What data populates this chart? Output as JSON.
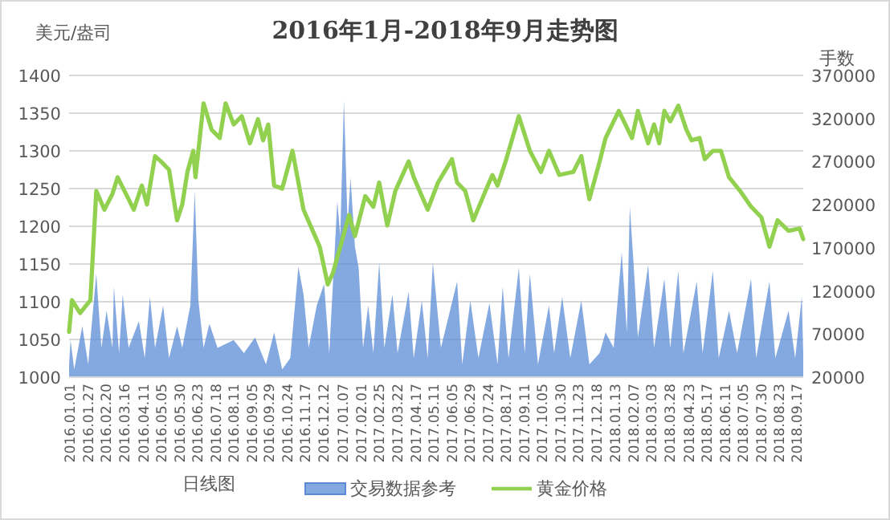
{
  "chart_data": {
    "type": "line",
    "title": "2016年1月-2018年9月走势图",
    "ylabel": "美元/盎司",
    "y2label": "手数",
    "xlabel": "日线图",
    "legend": "bottom",
    "grid": "y",
    "xlim": [
      "2016-01-01",
      "2018-09-26"
    ],
    "xticks": [
      {
        "value": "2016-01-01",
        "label": "2016.01.01"
      },
      {
        "value": "2016-01-27",
        "label": "2016.01.27"
      },
      {
        "value": "2016-02-20",
        "label": "2016.02.20"
      },
      {
        "value": "2016-03-16",
        "label": "2016.03.16"
      },
      {
        "value": "2016-04-11",
        "label": "2016.04.11"
      },
      {
        "value": "2016-05-05",
        "label": "2016.05.05"
      },
      {
        "value": "2016-05-30",
        "label": "2016.05.30"
      },
      {
        "value": "2016-06-23",
        "label": "2016.06.23"
      },
      {
        "value": "2016-07-18",
        "label": "2016.07.18"
      },
      {
        "value": "2016-08-11",
        "label": "2016.08.11"
      },
      {
        "value": "2016-09-05",
        "label": "2016.09.05"
      },
      {
        "value": "2016-09-29",
        "label": "2016.09.29"
      },
      {
        "value": "2016-10-24",
        "label": "2016.10.24"
      },
      {
        "value": "2016-11-17",
        "label": "2016.11.17"
      },
      {
        "value": "2016-12-12",
        "label": "2016.12.12"
      },
      {
        "value": "2017-01-07",
        "label": "2017.01.07"
      },
      {
        "value": "2017-02-01",
        "label": "2017.02.01"
      },
      {
        "value": "2017-02-25",
        "label": "2017.02.25"
      },
      {
        "value": "2017-03-22",
        "label": "2017.03.22"
      },
      {
        "value": "2017-04-17",
        "label": "2017.04.17"
      },
      {
        "value": "2017-05-11",
        "label": "2017.05.11"
      },
      {
        "value": "2017-06-05",
        "label": "2017.06.05"
      },
      {
        "value": "2017-06-29",
        "label": "2017.06.29"
      },
      {
        "value": "2017-07-24",
        "label": "2017.07.24"
      },
      {
        "value": "2017-08-17",
        "label": "2017.08.17"
      },
      {
        "value": "2017-09-11",
        "label": "2017.09.11"
      },
      {
        "value": "2017-10-05",
        "label": "2017.10.05"
      },
      {
        "value": "2017-10-30",
        "label": "2017.10.30"
      },
      {
        "value": "2017-11-23",
        "label": "2017.11.23"
      },
      {
        "value": "2017-12-18",
        "label": "2017.12.18"
      },
      {
        "value": "2018-01-13",
        "label": "2018.01.13"
      },
      {
        "value": "2018-02-07",
        "label": "2018.02.07"
      },
      {
        "value": "2018-03-03",
        "label": "2018.03.03"
      },
      {
        "value": "2018-03-28",
        "label": "2018.03.28"
      },
      {
        "value": "2018-04-23",
        "label": "2018.04.23"
      },
      {
        "value": "2018-05-17",
        "label": "2018.05.17"
      },
      {
        "value": "2018-06-11",
        "label": "2018.06.11"
      },
      {
        "value": "2018-07-05",
        "label": "2018.07.05"
      },
      {
        "value": "2018-07-30",
        "label": "2018.07.30"
      },
      {
        "value": "2018-08-23",
        "label": "2018.08.23"
      },
      {
        "value": "2018-09-17",
        "label": "2018.09.17"
      }
    ],
    "ylim": [
      1000,
      1400
    ],
    "yticks": [
      1000,
      1050,
      1100,
      1150,
      1200,
      1250,
      1300,
      1350,
      1400
    ],
    "y2lim": [
      20000,
      370000
    ],
    "y2ticks": [
      20000,
      70000,
      120000,
      170000,
      220000,
      270000,
      320000,
      370000
    ],
    "series": [
      {
        "name": "交易数据参考",
        "type": "area",
        "axis": "y2",
        "color": "#5b8bd6",
        "x": [
          "2016-01-01",
          "2016-01-03",
          "2016-01-08",
          "2016-01-19",
          "2016-01-27",
          "2016-02-07",
          "2016-02-14",
          "2016-02-21",
          "2016-02-29",
          "2016-03-02",
          "2016-03-09",
          "2016-03-14",
          "2016-03-22",
          "2016-04-05",
          "2016-04-13",
          "2016-04-20",
          "2016-04-27",
          "2016-05-08",
          "2016-05-16",
          "2016-05-27",
          "2016-06-03",
          "2016-06-14",
          "2016-06-20",
          "2016-06-25",
          "2016-07-02",
          "2016-07-10",
          "2016-07-21",
          "2016-08-12",
          "2016-08-26",
          "2016-09-10",
          "2016-09-25",
          "2016-10-06",
          "2016-10-17",
          "2016-10-28",
          "2016-11-08",
          "2016-11-15",
          "2016-11-22",
          "2016-12-03",
          "2016-12-13",
          "2016-12-20",
          "2016-12-31",
          "2017-01-04",
          "2017-01-09",
          "2017-01-14",
          "2017-01-18",
          "2017-01-24",
          "2017-01-29",
          "2017-02-04",
          "2017-02-11",
          "2017-02-18",
          "2017-02-26",
          "2017-03-05",
          "2017-03-16",
          "2017-03-23",
          "2017-04-07",
          "2017-04-14",
          "2017-04-25",
          "2017-05-03",
          "2017-05-10",
          "2017-05-21",
          "2017-06-12",
          "2017-06-19",
          "2017-06-30",
          "2017-07-11",
          "2017-07-26",
          "2017-08-06",
          "2017-08-13",
          "2017-08-21",
          "2017-09-04",
          "2017-09-12",
          "2017-09-19",
          "2017-09-30",
          "2017-10-15",
          "2017-10-22",
          "2017-11-02",
          "2017-11-13",
          "2017-11-28",
          "2017-12-09",
          "2017-12-23",
          "2017-12-31",
          "2018-01-11",
          "2018-01-22",
          "2018-01-29",
          "2018-02-02",
          "2018-02-07",
          "2018-02-13",
          "2018-02-27",
          "2018-03-07",
          "2018-03-21",
          "2018-03-29",
          "2018-04-09",
          "2018-04-16",
          "2018-05-04",
          "2018-05-12",
          "2018-05-26",
          "2018-06-03",
          "2018-06-17",
          "2018-06-28",
          "2018-07-17",
          "2018-07-24",
          "2018-08-11",
          "2018-08-19",
          "2018-09-06",
          "2018-09-15",
          "2018-09-24",
          "2018-09-26"
        ],
        "values": [
          35000,
          63000,
          29000,
          79000,
          35000,
          140000,
          54000,
          97000,
          54000,
          125000,
          48000,
          116000,
          54000,
          85000,
          42000,
          113000,
          54000,
          103000,
          42000,
          79000,
          54000,
          103000,
          236000,
          109000,
          54000,
          82000,
          54000,
          63000,
          48000,
          66000,
          35000,
          72000,
          29000,
          42000,
          148000,
          116000,
          54000,
          103000,
          128000,
          48000,
          224000,
          184000,
          341000,
          196000,
          251000,
          171000,
          147000,
          54000,
          103000,
          48000,
          153000,
          54000,
          116000,
          48000,
          119000,
          42000,
          109000,
          42000,
          153000,
          54000,
          131000,
          35000,
          109000,
          42000,
          106000,
          35000,
          125000,
          42000,
          147000,
          48000,
          140000,
          35000,
          103000,
          48000,
          113000,
          42000,
          109000,
          35000,
          48000,
          72000,
          54000,
          165000,
          72000,
          218000,
          153000,
          66000,
          150000,
          54000,
          134000,
          54000,
          143000,
          48000,
          131000,
          48000,
          143000,
          42000,
          97000,
          48000,
          134000,
          42000,
          131000,
          42000,
          97000,
          42000,
          113000,
          48000
        ]
      },
      {
        "name": "黄金价格",
        "type": "line",
        "axis": "y",
        "color": "#92d050",
        "x": [
          "2016-01-01",
          "2016-01-05",
          "2016-01-16",
          "2016-01-30",
          "2016-02-07",
          "2016-02-18",
          "2016-02-29",
          "2016-03-07",
          "2016-03-22",
          "2016-03-29",
          "2016-04-09",
          "2016-04-16",
          "2016-04-27",
          "2016-05-05",
          "2016-05-16",
          "2016-05-27",
          "2016-06-03",
          "2016-06-10",
          "2016-06-18",
          "2016-06-21",
          "2016-07-02",
          "2016-07-13",
          "2016-07-24",
          "2016-08-01",
          "2016-08-12",
          "2016-08-23",
          "2016-09-03",
          "2016-09-14",
          "2016-09-21",
          "2016-09-28",
          "2016-10-06",
          "2016-10-17",
          "2016-10-31",
          "2016-11-15",
          "2016-12-07",
          "2016-12-18",
          "2016-12-25",
          "2017-01-05",
          "2017-01-16",
          "2017-01-24",
          "2017-02-07",
          "2017-02-18",
          "2017-02-26",
          "2017-03-09",
          "2017-03-20",
          "2017-04-07",
          "2017-04-14",
          "2017-05-03",
          "2017-05-17",
          "2017-06-05",
          "2017-06-12",
          "2017-06-23",
          "2017-07-04",
          "2017-07-22",
          "2017-07-30",
          "2017-08-06",
          "2017-08-17",
          "2017-09-04",
          "2017-09-19",
          "2017-10-04",
          "2017-10-15",
          "2017-10-29",
          "2017-11-17",
          "2017-11-28",
          "2017-12-09",
          "2017-12-23",
          "2017-12-31",
          "2018-01-18",
          "2018-02-05",
          "2018-02-13",
          "2018-02-27",
          "2018-03-07",
          "2018-03-14",
          "2018-03-21",
          "2018-03-29",
          "2018-04-09",
          "2018-04-20",
          "2018-04-27",
          "2018-05-08",
          "2018-05-15",
          "2018-05-26",
          "2018-06-06",
          "2018-06-17",
          "2018-07-02",
          "2018-07-17",
          "2018-07-31",
          "2018-08-11",
          "2018-08-22",
          "2018-09-06",
          "2018-09-21",
          "2018-09-26"
        ],
        "values": [
          1060,
          1102,
          1085,
          1102,
          1247,
          1222,
          1243,
          1265,
          1236,
          1222,
          1254,
          1229,
          1293,
          1286,
          1275,
          1208,
          1229,
          1272,
          1300,
          1265,
          1363,
          1328,
          1317,
          1363,
          1335,
          1346,
          1310,
          1342,
          1314,
          1335,
          1254,
          1250,
          1300,
          1222,
          1173,
          1123,
          1138,
          1176,
          1215,
          1187,
          1240,
          1226,
          1258,
          1201,
          1247,
          1286,
          1265,
          1222,
          1258,
          1289,
          1258,
          1247,
          1208,
          1250,
          1268,
          1254,
          1286,
          1346,
          1300,
          1272,
          1300,
          1268,
          1272,
          1293,
          1236,
          1286,
          1317,
          1353,
          1317,
          1353,
          1310,
          1335,
          1310,
          1353,
          1339,
          1360,
          1328,
          1314,
          1317,
          1289,
          1300,
          1300,
          1265,
          1247,
          1226,
          1212,
          1173,
          1208,
          1194,
          1197,
          1183
        ]
      }
    ]
  }
}
